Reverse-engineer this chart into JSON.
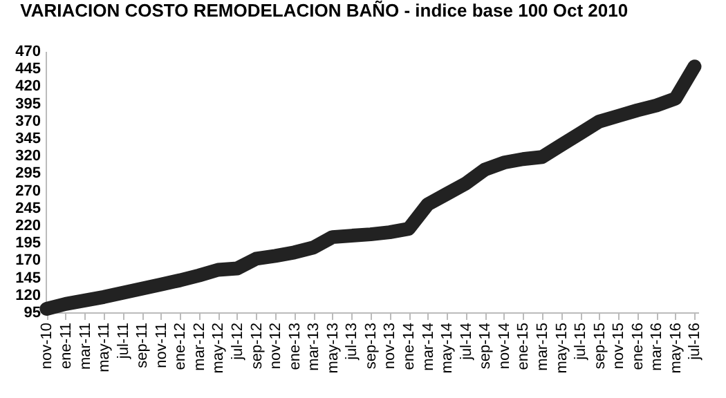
{
  "chart_data": {
    "type": "line",
    "title": "VARIACION COSTO REMODELACION BAÑO - indice base 100 Oct 2010",
    "categories": [
      "nov-10",
      "ene-11",
      "mar-11",
      "may-11",
      "jul-11",
      "sep-11",
      "nov-11",
      "ene-12",
      "mar-12",
      "may-12",
      "jul-12",
      "sep-12",
      "nov-12",
      "ene-13",
      "mar-13",
      "may-13",
      "jul-13",
      "sep-13",
      "nov-13",
      "ene-14",
      "mar-14",
      "may-14",
      "jul-14",
      "sep-14",
      "nov-14",
      "ene-15",
      "mar-15",
      "may-15",
      "jul-15",
      "sep-15",
      "nov-15",
      "ene-16",
      "mar-16",
      "may-16",
      "jul-16"
    ],
    "series": [
      {
        "color": "#222222",
        "values": [
          100,
          107,
          112,
          117,
          123,
          129,
          135,
          141,
          148,
          156,
          158,
          172,
          176,
          181,
          188,
          203,
          205,
          207,
          210,
          215,
          250,
          265,
          280,
          300,
          310,
          315,
          318,
          335,
          352,
          369,
          377,
          385,
          392,
          402,
          448
        ]
      }
    ],
    "ylim": [
      95,
      470
    ],
    "yticks": [
      95,
      120,
      145,
      170,
      195,
      220,
      245,
      270,
      295,
      320,
      345,
      370,
      395,
      420,
      445,
      470
    ],
    "grid": false
  }
}
